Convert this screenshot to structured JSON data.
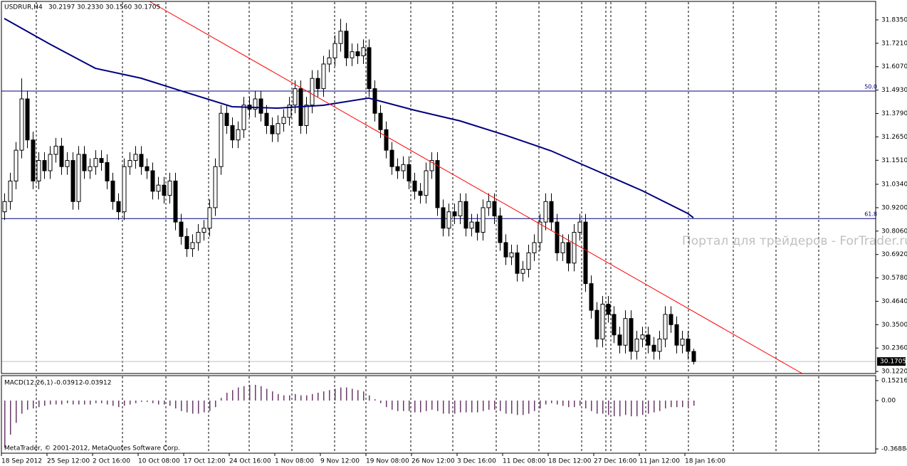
{
  "chart_data": [
    {
      "type": "candlestick",
      "symbol": "USDRUR,H4",
      "ohlc_labels": [
        "30.2197",
        "30.2330",
        "30.1560",
        "30.1705"
      ],
      "last_price": {
        "value": 30.1705,
        "label": "30.1705"
      },
      "up_color": "#ffffff",
      "down_color": "#000000",
      "line_color": "#000000",
      "open": [
        30.9,
        30.95,
        31.05,
        31.2,
        31.45,
        31.25,
        31.05,
        31.15,
        31.1,
        31.18,
        31.22,
        31.12,
        31.15,
        30.95,
        31.18,
        31.1,
        31.12,
        31.16,
        31.14,
        31.05,
        30.95,
        30.9,
        31.12,
        31.15,
        31.18,
        31.12,
        31.1,
        31.0,
        31.03,
        30.98,
        31.05,
        30.85,
        30.78,
        30.72,
        30.75,
        30.8,
        30.82,
        30.92,
        31.12,
        31.38,
        31.32,
        31.25,
        31.3,
        31.42,
        31.4,
        31.45,
        31.38,
        31.32,
        31.28,
        31.33,
        31.36,
        31.42,
        31.5,
        31.32,
        31.42,
        31.55,
        31.5,
        31.62,
        31.65,
        31.72,
        31.78,
        31.65,
        31.68,
        31.66,
        31.7,
        31.5,
        31.38,
        31.3,
        31.2,
        31.12,
        31.1,
        31.13,
        31.05,
        31.0,
        30.98,
        31.1,
        31.15,
        30.92,
        30.82,
        30.9,
        30.88,
        30.95,
        30.82,
        30.85,
        30.8,
        30.92,
        30.95,
        30.88,
        30.75,
        30.68,
        30.7,
        30.6,
        30.62,
        30.7,
        30.75,
        30.85,
        30.95,
        30.85,
        30.7,
        30.75,
        30.65,
        30.8,
        30.85,
        30.55,
        30.42,
        30.28,
        30.45,
        30.4,
        30.3,
        30.25,
        30.38,
        30.22,
        30.28,
        30.3,
        30.25,
        30.22,
        30.28,
        30.4,
        30.35,
        30.25,
        30.28,
        30.2197
      ],
      "high": [
        30.99,
        31.09,
        31.24,
        31.55,
        31.49,
        31.29,
        31.19,
        31.19,
        31.22,
        31.26,
        31.26,
        31.19,
        31.19,
        31.22,
        31.22,
        31.16,
        31.2,
        31.2,
        31.18,
        31.09,
        30.99,
        31.16,
        31.19,
        31.22,
        31.22,
        31.16,
        31.14,
        31.07,
        31.07,
        31.09,
        31.09,
        30.89,
        30.82,
        30.79,
        30.84,
        30.86,
        30.96,
        31.16,
        31.42,
        31.42,
        31.36,
        31.34,
        31.46,
        31.46,
        31.49,
        31.49,
        31.42,
        31.36,
        31.37,
        31.4,
        31.46,
        31.54,
        31.54,
        31.46,
        31.59,
        31.59,
        31.66,
        31.69,
        31.76,
        31.84,
        31.82,
        31.72,
        31.72,
        31.74,
        31.74,
        31.54,
        31.42,
        31.34,
        31.24,
        31.16,
        31.17,
        31.17,
        31.09,
        31.04,
        31.14,
        31.19,
        31.19,
        30.96,
        30.94,
        30.94,
        30.99,
        30.99,
        30.89,
        30.89,
        30.96,
        30.99,
        30.99,
        30.92,
        30.79,
        30.74,
        30.74,
        30.66,
        30.74,
        30.79,
        30.89,
        30.99,
        30.99,
        30.89,
        30.79,
        30.79,
        30.84,
        30.89,
        30.89,
        30.59,
        30.46,
        30.49,
        30.49,
        30.44,
        30.34,
        30.42,
        30.42,
        30.32,
        30.34,
        30.34,
        30.29,
        30.32,
        30.44,
        30.44,
        30.39,
        30.32,
        30.32,
        30.233
      ],
      "low": [
        30.86,
        30.91,
        31.01,
        31.16,
        31.21,
        31.01,
        31.01,
        31.06,
        31.06,
        31.14,
        31.08,
        31.08,
        30.91,
        30.91,
        31.06,
        31.06,
        31.08,
        31.1,
        31.01,
        30.91,
        30.86,
        30.86,
        31.08,
        31.11,
        31.08,
        31.06,
        30.96,
        30.96,
        30.94,
        30.94,
        30.81,
        30.74,
        30.68,
        30.68,
        30.71,
        30.76,
        30.78,
        30.88,
        31.08,
        31.28,
        31.21,
        31.21,
        31.26,
        31.36,
        31.36,
        31.34,
        31.28,
        31.24,
        31.24,
        31.29,
        31.32,
        31.38,
        31.28,
        31.28,
        31.38,
        31.46,
        31.46,
        31.58,
        31.61,
        31.68,
        31.61,
        31.61,
        31.62,
        31.62,
        31.46,
        31.34,
        31.26,
        31.16,
        31.08,
        31.06,
        31.06,
        31.01,
        30.96,
        30.94,
        30.94,
        31.06,
        30.88,
        30.78,
        30.78,
        30.84,
        30.84,
        30.78,
        30.78,
        30.76,
        30.76,
        30.88,
        30.84,
        30.71,
        30.64,
        30.64,
        30.56,
        30.56,
        30.58,
        30.66,
        30.71,
        30.81,
        30.81,
        30.66,
        30.66,
        30.61,
        30.61,
        30.76,
        30.51,
        30.38,
        30.24,
        30.24,
        30.36,
        30.26,
        30.21,
        30.21,
        30.18,
        30.18,
        30.24,
        30.21,
        30.18,
        30.18,
        30.24,
        30.31,
        30.21,
        30.21,
        30.18,
        30.156
      ],
      "close": [
        30.95,
        31.05,
        31.2,
        31.45,
        31.25,
        31.05,
        31.15,
        31.1,
        31.18,
        31.22,
        31.12,
        31.15,
        30.95,
        31.18,
        31.1,
        31.12,
        31.16,
        31.14,
        31.05,
        30.95,
        30.9,
        31.12,
        31.15,
        31.18,
        31.12,
        31.1,
        31.0,
        31.03,
        30.98,
        31.05,
        30.85,
        30.78,
        30.72,
        30.75,
        30.8,
        30.82,
        30.92,
        31.12,
        31.38,
        31.32,
        31.25,
        31.3,
        31.42,
        31.4,
        31.45,
        31.38,
        31.32,
        31.28,
        31.33,
        31.36,
        31.42,
        31.5,
        31.32,
        31.42,
        31.55,
        31.5,
        31.62,
        31.65,
        31.72,
        31.78,
        31.65,
        31.68,
        31.66,
        31.7,
        31.5,
        31.38,
        31.3,
        31.2,
        31.12,
        31.1,
        31.13,
        31.05,
        31.0,
        30.98,
        31.1,
        31.15,
        30.92,
        30.82,
        30.9,
        30.88,
        30.95,
        30.82,
        30.85,
        30.8,
        30.92,
        30.95,
        30.88,
        30.75,
        30.68,
        30.7,
        30.6,
        30.62,
        30.7,
        30.75,
        30.85,
        30.95,
        30.85,
        30.7,
        30.75,
        30.65,
        30.8,
        30.85,
        30.55,
        30.42,
        30.28,
        30.45,
        30.4,
        30.3,
        30.25,
        30.38,
        30.22,
        30.28,
        30.3,
        30.25,
        30.22,
        30.28,
        30.4,
        30.35,
        30.25,
        30.28,
        30.22,
        30.1705
      ],
      "moving_average": {
        "color": "#000080",
        "x": [
          0,
          8,
          16,
          24,
          32,
          40,
          48,
          56,
          64,
          72,
          80,
          88,
          96,
          104,
          112,
          120,
          121
        ],
        "values": [
          31.842,
          31.717,
          31.599,
          31.551,
          31.481,
          31.412,
          31.405,
          31.419,
          31.454,
          31.395,
          31.343,
          31.273,
          31.197,
          31.1,
          31.003,
          30.892,
          30.871
        ]
      },
      "trendline": {
        "color": "#ff0000",
        "x": [
          25.5,
          140.1
        ],
        "values": [
          31.925,
          30.112
        ]
      },
      "levels": [
        {
          "label": "50.0",
          "value": 31.488
        },
        {
          "label": "61.8",
          "value": 30.867
        }
      ],
      "level_color": "#000080",
      "watermark": "Портал для трейдеров - ForTrader.ru",
      "xlim": [
        -0.5,
        153
      ],
      "xticks": [
        {
          "value": 0,
          "label": "18 Sep 2012"
        },
        {
          "value": 8,
          "label": "25 Sep 12:00"
        },
        {
          "value": 16,
          "label": "2 Oct 16:00"
        },
        {
          "value": 24,
          "label": "10 Oct 08:00"
        },
        {
          "value": 32,
          "label": "17 Oct 12:00"
        },
        {
          "value": 40,
          "label": "24 Oct 16:00"
        },
        {
          "value": 48,
          "label": "1 Nov 08:00"
        },
        {
          "value": 56,
          "label": "9 Nov 12:00"
        },
        {
          "value": 64,
          "label": "19 Nov 08:00"
        },
        {
          "value": 72,
          "label": "26 Nov 12:00"
        },
        {
          "value": 80,
          "label": "3 Dec 16:00"
        },
        {
          "value": 88,
          "label": "11 Dec 08:00"
        },
        {
          "value": 96,
          "label": "18 Dec 12:00"
        },
        {
          "value": 104,
          "label": "27 Dec 16:00"
        },
        {
          "value": 112,
          "label": "11 Jan 12:00"
        },
        {
          "value": 120,
          "label": "18 Jan 16:00"
        }
      ],
      "ylim": [
        30.112,
        31.925
      ],
      "yticks": [
        {
          "value": 31.835,
          "label": "31.8350"
        },
        {
          "value": 31.721,
          "label": "31.7210"
        },
        {
          "value": 31.607,
          "label": "31.6070"
        },
        {
          "value": 31.493,
          "label": "31.4930"
        },
        {
          "value": 31.379,
          "label": "31.3790"
        },
        {
          "value": 31.265,
          "label": "31.2650"
        },
        {
          "value": 31.151,
          "label": "31.1510"
        },
        {
          "value": 31.034,
          "label": "31.0340"
        },
        {
          "value": 30.92,
          "label": "30.9200"
        },
        {
          "value": 30.806,
          "label": "30.8060"
        },
        {
          "value": 30.692,
          "label": "30.6920"
        },
        {
          "value": 30.578,
          "label": "30.5780"
        },
        {
          "value": 30.464,
          "label": "30.4640"
        },
        {
          "value": 30.35,
          "label": "30.3500"
        },
        {
          "value": 30.236,
          "label": "30.2360"
        },
        {
          "value": 30.122,
          "label": "30.1220"
        }
      ]
    },
    {
      "type": "bar",
      "title": "MACD(12,26,1)",
      "macd_value": -0.03912,
      "signal_value": -0.03912,
      "color": "#6a3a6a",
      "values": [
        -0.36,
        -0.26,
        -0.17,
        -0.1,
        -0.07,
        -0.06,
        -0.05,
        -0.04,
        -0.03,
        -0.03,
        -0.03,
        -0.02,
        -0.03,
        -0.03,
        -0.03,
        -0.03,
        -0.02,
        -0.02,
        -0.03,
        -0.04,
        -0.05,
        -0.04,
        -0.03,
        -0.02,
        -0.01,
        -0.01,
        -0.02,
        -0.03,
        -0.03,
        -0.04,
        -0.06,
        -0.08,
        -0.09,
        -0.1,
        -0.1,
        -0.09,
        -0.08,
        -0.05,
        0.02,
        0.06,
        0.08,
        0.1,
        0.11,
        0.12,
        0.12,
        0.11,
        0.09,
        0.07,
        0.05,
        0.04,
        0.04,
        0.05,
        0.04,
        0.04,
        0.05,
        0.06,
        0.07,
        0.08,
        0.09,
        0.1,
        0.1,
        0.09,
        0.08,
        0.07,
        0.04,
        0.01,
        -0.02,
        -0.05,
        -0.07,
        -0.08,
        -0.08,
        -0.08,
        -0.09,
        -0.09,
        -0.08,
        -0.07,
        -0.08,
        -0.1,
        -0.1,
        -0.1,
        -0.09,
        -0.09,
        -0.09,
        -0.09,
        -0.08,
        -0.07,
        -0.07,
        -0.08,
        -0.1,
        -0.1,
        -0.11,
        -0.11,
        -0.1,
        -0.08,
        -0.06,
        -0.03,
        -0.02,
        -0.03,
        -0.04,
        -0.05,
        -0.05,
        -0.04,
        -0.06,
        -0.08,
        -0.1,
        -0.1,
        -0.11,
        -0.12,
        -0.12,
        -0.11,
        -0.12,
        -0.12,
        -0.11,
        -0.1,
        -0.09,
        -0.08,
        -0.06,
        -0.05,
        -0.05,
        -0.05,
        -0.05,
        -0.03912
      ],
      "ylim": [
        -0.4014,
        0.19
      ],
      "yticks": [
        0.15216,
        {
          "value": 0,
          "label": "0.00"
        },
        -0.36884
      ],
      "footer": "MetaTrader, © 2001-2012, MetaQuotes Software Corp."
    }
  ]
}
